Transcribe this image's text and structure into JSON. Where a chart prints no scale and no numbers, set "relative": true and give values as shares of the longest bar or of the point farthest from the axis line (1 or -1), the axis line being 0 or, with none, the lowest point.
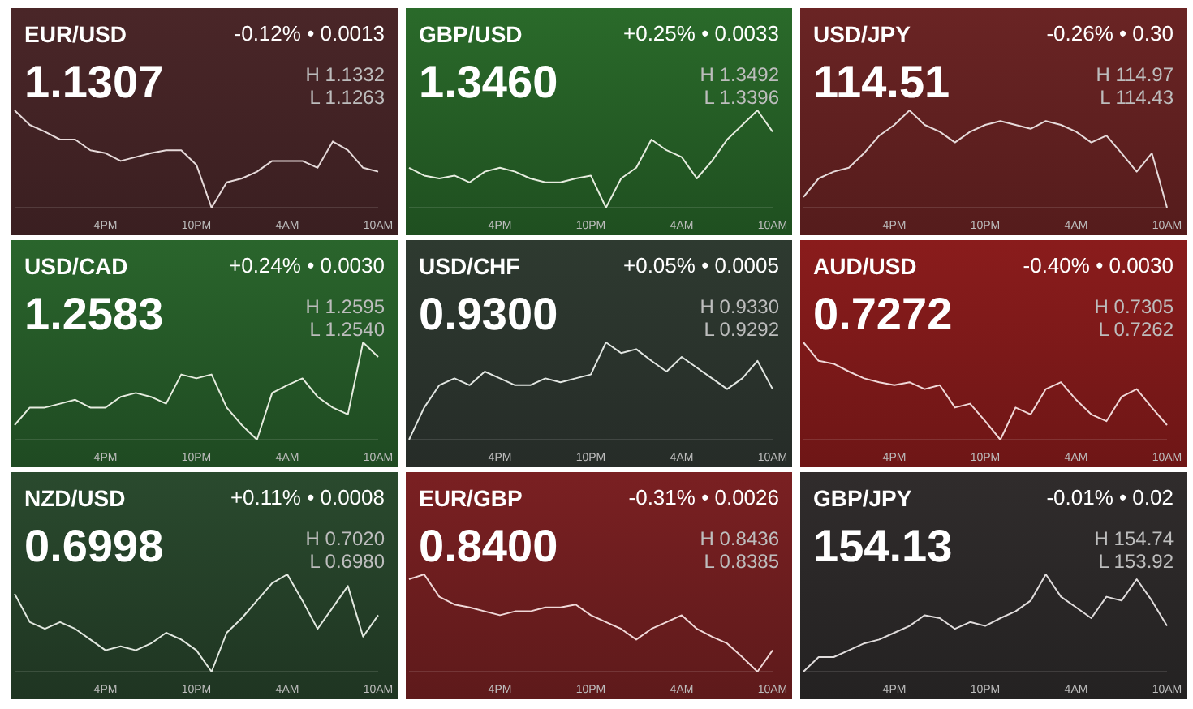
{
  "chart_data": [
    {
      "type": "line",
      "title": "EUR/USD",
      "subtitle": "1.1307",
      "annotations": [
        "-0.12% • 0.0013",
        "H 1.1332",
        "L 1.1263"
      ],
      "relative": true,
      "color": "#e6dada",
      "categories": [
        null,
        null,
        null,
        null,
        null,
        null,
        "4PM",
        null,
        null,
        null,
        null,
        null,
        "10PM",
        null,
        null,
        null,
        null,
        null,
        "4AM",
        null,
        null,
        null,
        null,
        null,
        "10AM"
      ],
      "values": [
        1.0,
        0.85,
        0.78,
        0.7,
        0.7,
        0.59,
        0.56,
        0.48,
        0.52,
        0.56,
        0.59,
        0.59,
        0.44,
        0,
        0.26,
        0.3,
        0.37,
        0.48,
        0.48,
        0.48,
        0.41,
        0.68,
        0.59,
        0.41,
        0.37
      ]
    },
    {
      "type": "line",
      "title": "GBP/USD",
      "subtitle": "1.3460",
      "annotations": [
        "+0.25% • 0.0033",
        "H 1.3492",
        "L 1.3396"
      ],
      "relative": true,
      "color": "#e6ecdf",
      "categories": [
        null,
        null,
        null,
        null,
        null,
        null,
        "4PM",
        null,
        null,
        null,
        null,
        null,
        "10PM",
        null,
        null,
        null,
        null,
        null,
        "4AM",
        null,
        null,
        null,
        null,
        null,
        "10AM"
      ],
      "values": [
        0.41,
        0.33,
        0.3,
        0.33,
        0.26,
        0.37,
        0.41,
        0.37,
        0.3,
        0.26,
        0.26,
        0.3,
        0.33,
        0,
        0.3,
        0.41,
        0.7,
        0.59,
        0.52,
        0.3,
        0.48,
        0.7,
        0.85,
        1.0,
        0.78
      ]
    },
    {
      "type": "line",
      "title": "USD/JPY",
      "subtitle": "114.51",
      "annotations": [
        "-0.26% • 0.30",
        "H 114.97",
        "L 114.43"
      ],
      "relative": true,
      "color": "#e6dada",
      "categories": [
        null,
        null,
        null,
        null,
        null,
        null,
        "4PM",
        null,
        null,
        null,
        null,
        null,
        "10PM",
        null,
        null,
        null,
        null,
        null,
        "4AM",
        null,
        null,
        null,
        null,
        null,
        "10AM"
      ],
      "values": [
        0.11,
        0.3,
        0.37,
        0.41,
        0.56,
        0.74,
        0.85,
        1.0,
        0.85,
        0.78,
        0.67,
        0.78,
        0.85,
        0.89,
        0.85,
        0.81,
        0.89,
        0.85,
        0.78,
        0.67,
        0.74,
        0.56,
        0.37,
        0.56,
        0
      ]
    },
    {
      "type": "line",
      "title": "USD/CAD",
      "subtitle": "1.2583",
      "annotations": [
        "+0.24% • 0.0030",
        "H 1.2595",
        "L 1.2540"
      ],
      "relative": true,
      "color": "#e6ecdf",
      "categories": [
        null,
        null,
        null,
        null,
        null,
        null,
        "4PM",
        null,
        null,
        null,
        null,
        null,
        "10PM",
        null,
        null,
        null,
        null,
        null,
        "4AM",
        null,
        null,
        null,
        null,
        null,
        "10AM"
      ],
      "values": [
        0.15,
        0.33,
        0.33,
        0.37,
        0.41,
        0.33,
        0.33,
        0.44,
        0.48,
        0.44,
        0.37,
        0.67,
        0.63,
        0.67,
        0.33,
        0.15,
        0,
        0.48,
        0.56,
        0.63,
        0.44,
        0.33,
        0.26,
        1.0,
        0.85
      ]
    },
    {
      "type": "line",
      "title": "USD/CHF",
      "subtitle": "0.9300",
      "annotations": [
        "+0.05% • 0.0005",
        "H 0.9330",
        "L 0.9292"
      ],
      "relative": true,
      "color": "#e2e6e2",
      "categories": [
        null,
        null,
        null,
        null,
        null,
        null,
        "4PM",
        null,
        null,
        null,
        null,
        null,
        "10PM",
        null,
        null,
        null,
        null,
        null,
        "4AM",
        null,
        null,
        null,
        null,
        null,
        "10AM"
      ],
      "values": [
        0,
        0.33,
        0.56,
        0.63,
        0.56,
        0.7,
        0.63,
        0.56,
        0.56,
        0.63,
        0.59,
        0.63,
        0.67,
        1.0,
        0.89,
        0.93,
        0.81,
        0.7,
        0.85,
        0.74,
        0.63,
        0.52,
        0.63,
        0.81,
        0.52
      ]
    },
    {
      "type": "line",
      "title": "AUD/USD",
      "subtitle": "0.7272",
      "annotations": [
        "-0.40% • 0.0030",
        "H 0.7305",
        "L 0.7262"
      ],
      "relative": true,
      "color": "#f0d8d8",
      "categories": [
        null,
        null,
        null,
        null,
        null,
        null,
        "4PM",
        null,
        null,
        null,
        null,
        null,
        "10PM",
        null,
        null,
        null,
        null,
        null,
        "4AM",
        null,
        null,
        null,
        null,
        null,
        "10AM"
      ],
      "values": [
        1.0,
        0.81,
        0.78,
        0.7,
        0.63,
        0.59,
        0.56,
        0.59,
        0.52,
        0.56,
        0.33,
        0.37,
        0.19,
        0,
        0.33,
        0.26,
        0.52,
        0.59,
        0.41,
        0.26,
        0.19,
        0.44,
        0.52,
        0.33,
        0.15
      ]
    },
    {
      "type": "line",
      "title": "NZD/USD",
      "subtitle": "0.6998",
      "annotations": [
        "+0.11% • 0.0008",
        "H 0.7020",
        "L 0.6980"
      ],
      "relative": true,
      "color": "#e2e8e0",
      "categories": [
        null,
        null,
        null,
        null,
        null,
        null,
        "4PM",
        null,
        null,
        null,
        null,
        null,
        "10PM",
        null,
        null,
        null,
        null,
        null,
        "4AM",
        null,
        null,
        null,
        null,
        null,
        "10AM"
      ],
      "values": [
        0.8,
        0.51,
        0.44,
        0.51,
        0.44,
        0.33,
        0.22,
        0.26,
        0.22,
        0.29,
        0.4,
        0.33,
        0.22,
        0,
        0.4,
        0.55,
        0.73,
        0.91,
        1.0,
        0.73,
        0.44,
        0.66,
        0.88,
        0.36,
        0.58
      ]
    },
    {
      "type": "line",
      "title": "EUR/GBP",
      "subtitle": "0.8400",
      "annotations": [
        "-0.31% • 0.0026",
        "H 0.8436",
        "L 0.8385"
      ],
      "relative": true,
      "color": "#f0d8d8",
      "categories": [
        null,
        null,
        null,
        null,
        null,
        null,
        "4PM",
        null,
        null,
        null,
        null,
        null,
        "10PM",
        null,
        null,
        null,
        null,
        null,
        "4AM",
        null,
        null,
        null,
        null,
        null,
        "10AM"
      ],
      "values": [
        0.95,
        1.0,
        0.77,
        0.69,
        0.66,
        0.62,
        0.58,
        0.62,
        0.62,
        0.66,
        0.66,
        0.69,
        0.58,
        0.51,
        0.44,
        0.33,
        0.44,
        0.51,
        0.58,
        0.44,
        0.36,
        0.29,
        0.15,
        0,
        0.22
      ]
    },
    {
      "type": "line",
      "title": "GBP/JPY",
      "subtitle": "154.13",
      "annotations": [
        "-0.01% • 0.02",
        "H 154.74",
        "L 153.92"
      ],
      "relative": true,
      "color": "#e0dcdc",
      "categories": [
        null,
        null,
        null,
        null,
        null,
        null,
        "4PM",
        null,
        null,
        null,
        null,
        null,
        "10PM",
        null,
        null,
        null,
        null,
        null,
        "4AM",
        null,
        null,
        null,
        null,
        null,
        "10AM"
      ],
      "values": [
        0,
        0.15,
        0.15,
        0.22,
        0.29,
        0.33,
        0.4,
        0.47,
        0.58,
        0.55,
        0.44,
        0.51,
        0.47,
        0.55,
        0.62,
        0.73,
        1.0,
        0.77,
        0.66,
        0.55,
        0.77,
        0.73,
        0.95,
        0.73,
        0.47
      ]
    }
  ]
}
